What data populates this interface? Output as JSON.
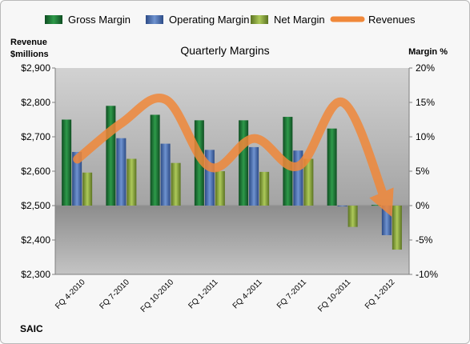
{
  "chart_data": {
    "type": "bar",
    "title": "Quarterly Margins",
    "categories": [
      "FQ 4-2010",
      "FQ 7-2010",
      "FQ 10-2010",
      "FQ 1-2011",
      "FQ 4-2011",
      "FQ 7-2011",
      "FQ 10-2011",
      "FQ 1-2012"
    ],
    "series": [
      {
        "name": "Gross Margin",
        "type": "bar",
        "axis": "right",
        "color": "#1f7a3a",
        "values": [
          12.5,
          14.5,
          13.2,
          12.4,
          12.4,
          12.9,
          11.2,
          0.1
        ]
      },
      {
        "name": "Operating Margin",
        "type": "bar",
        "axis": "right",
        "color": "#4a6fb5",
        "values": [
          7.8,
          9.8,
          9.0,
          8.1,
          8.5,
          8.0,
          0.0,
          -4.3
        ]
      },
      {
        "name": "Net Margin",
        "type": "bar",
        "axis": "right",
        "color": "#8aa63c",
        "values": [
          4.8,
          6.8,
          6.2,
          5.0,
          4.9,
          6.8,
          -3.1,
          -6.4
        ]
      },
      {
        "name": "Revenues",
        "type": "line",
        "axis": "left",
        "color": "#f0883a",
        "values": [
          2635,
          2740,
          2808,
          2612,
          2695,
          2615,
          2800,
          2500
        ]
      }
    ],
    "y_left": {
      "label_line1": "Revenue",
      "label_line2": "$millions",
      "min": 2300,
      "max": 2900,
      "ticks": [
        "$2,300",
        "$2,400",
        "$2,500",
        "$2,600",
        "$2,700",
        "$2,800",
        "$2,900"
      ]
    },
    "y_right": {
      "label": "Margin %",
      "min": -10,
      "max": 20,
      "ticks": [
        "-10%",
        "-5%",
        "0%",
        "5%",
        "10%",
        "15%",
        "20%"
      ]
    },
    "legend_position": "top",
    "footer": "SAIC"
  }
}
